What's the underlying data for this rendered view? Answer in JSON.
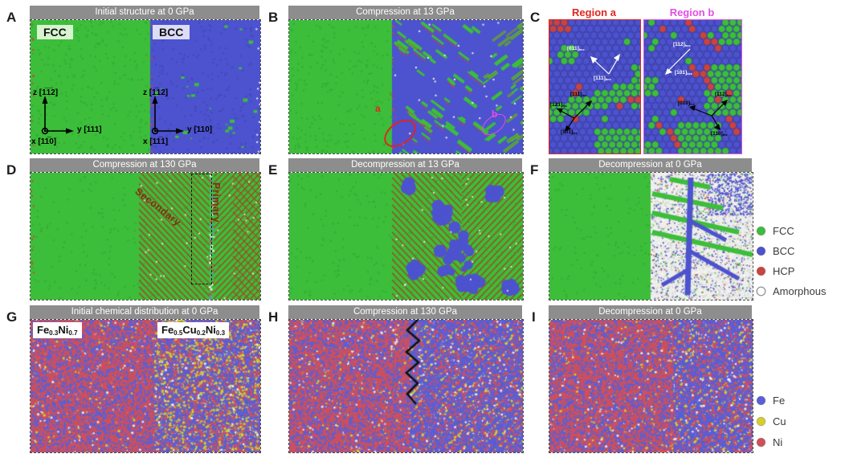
{
  "panels": {
    "A": {
      "letter": "A",
      "title": "Initial structure at 0 GPa",
      "label_fcc": "FCC",
      "label_bcc": "BCC",
      "axes_left": {
        "z": "z [1̅1̅2]",
        "y": "y [111]",
        "x": "x [11̅0]"
      },
      "axes_right": {
        "z": "z [1̅12]",
        "y": "y [110]",
        "x": "x [11̅1]"
      }
    },
    "B": {
      "letter": "B",
      "title": "Compression at 13 GPa",
      "marker_a": "a",
      "marker_b": "b"
    },
    "C": {
      "letter": "C",
      "region_a": {
        "title": "Region a",
        "white_labels": [
          {
            "t": "[011]",
            "s": "bcc"
          },
          {
            "t": "[1̅11]",
            "s": "bcc"
          }
        ],
        "black_labels": [
          {
            "t": "[111]",
            "s": "fcc"
          },
          {
            "t": "[1̅21]",
            "s": "fcc"
          },
          {
            "t": "[1̅01]",
            "s": "fcc"
          }
        ]
      },
      "region_b": {
        "title": "Region b",
        "white_labels": [
          {
            "t": "[112]",
            "s": "bcc"
          },
          {
            "t": "[1̅01]",
            "s": "bcc"
          }
        ],
        "black_labels": [
          {
            "t": "[01̅0]",
            "s": "fcc"
          },
          {
            "t": "[112]",
            "s": "fcc"
          },
          {
            "t": "[110]",
            "s": "fcc"
          }
        ]
      }
    },
    "D": {
      "letter": "D",
      "title": "Compression at 130 GPa",
      "label_secondary": "Secondary",
      "label_primary": "Primary"
    },
    "E": {
      "letter": "E",
      "title": "Decompression at 13 GPa"
    },
    "F": {
      "letter": "F",
      "title": "Decompression at 0 GPa"
    },
    "G": {
      "letter": "G",
      "title": "Initial chemical distribution at 0 GPa",
      "formula_left": {
        "e1": "Fe",
        "s1": "0.3",
        "e2": "Ni",
        "s2": "0.7"
      },
      "formula_right": {
        "e1": "Fe",
        "s1": "0.5",
        "e2": "Cu",
        "s2": "0.2",
        "e3": "Ni",
        "s3": "0.3"
      }
    },
    "H": {
      "letter": "H",
      "title": "Compression at 130 GPa"
    },
    "I": {
      "letter": "I",
      "title": "Decompression at 0 GPa"
    }
  },
  "legend_structure": {
    "items": [
      {
        "label": "FCC",
        "color": "#3cbe3a"
      },
      {
        "label": "BCC",
        "color": "#4d52ce"
      },
      {
        "label": "HCP",
        "color": "#c94440"
      },
      {
        "label": "Amorphous",
        "color": "#ffffff"
      }
    ]
  },
  "legend_elements": {
    "items": [
      {
        "label": "Fe",
        "color": "#5a5fd8"
      },
      {
        "label": "Cu",
        "color": "#d6ce2e"
      },
      {
        "label": "Ni",
        "color": "#d0505a"
      }
    ]
  }
}
